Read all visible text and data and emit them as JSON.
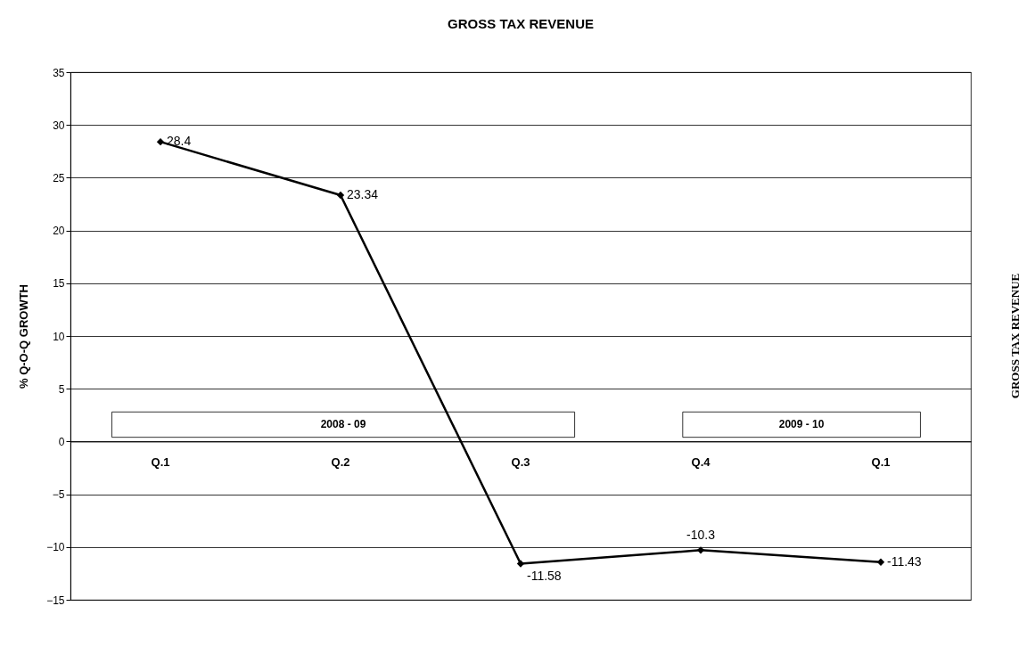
{
  "chart_data": {
    "type": "line",
    "title": "GROSS TAX REVENUE",
    "ylabel": "% Q-O-Q GROWTH",
    "y2label": "GROSS TAX REVENUE",
    "categories": [
      "Q.1",
      "Q.2",
      "Q.3",
      "Q.4",
      "Q.1"
    ],
    "series": [
      {
        "color": "#000000",
        "values": [
          28.4,
          23.34,
          -11.58,
          -10.3,
          -11.43
        ]
      }
    ],
    "ylim": [
      -15,
      35
    ],
    "yticks": [
      -15,
      -10,
      -5,
      0,
      5,
      10,
      15,
      20,
      25,
      30,
      35
    ],
    "grid": "y",
    "marker": "diamond",
    "line_style": "solid",
    "data_labels": true,
    "annotations": [
      "2008 - 09",
      "2009 - 10"
    ]
  }
}
